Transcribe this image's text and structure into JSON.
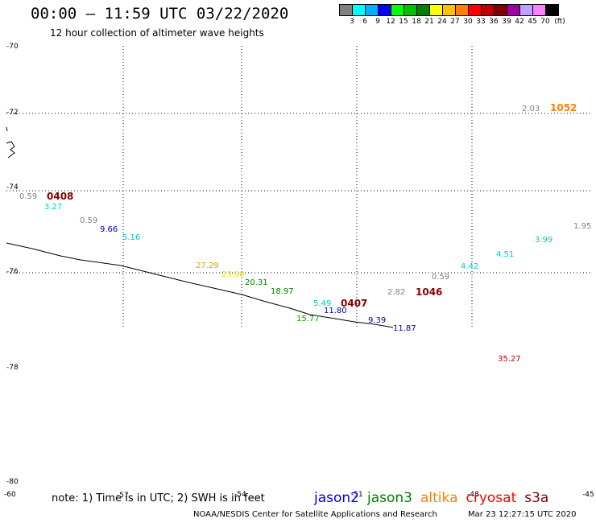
{
  "header": {
    "title": "00:00 – 11:59 UTC 03/22/2020",
    "subtitle": "12 hour collection of altimeter wave heights"
  },
  "colorbar": {
    "colors": [
      "#808080",
      "#00ffff",
      "#00b0ff",
      "#0000ff",
      "#00ff00",
      "#00c000",
      "#008000",
      "#ffff00",
      "#ffc000",
      "#ff8000",
      "#ff0000",
      "#c00000",
      "#800000",
      "#a000a0",
      "#c0a0ff",
      "#ff80ff",
      "#000000"
    ],
    "labels": [
      "3",
      "6",
      "9",
      "12",
      "15",
      "18",
      "21",
      "24",
      "27",
      "30",
      "33",
      "36",
      "39",
      "42",
      "45",
      "70",
      "(ft)"
    ]
  },
  "axes": {
    "lat_labels": [
      "-70",
      "-72",
      "-74",
      "-76",
      "-78",
      "-80"
    ],
    "lon_labels": [
      "-60",
      "-57",
      "-54",
      "-51",
      "-48",
      "-45"
    ]
  },
  "track_labels": [
    {
      "text": "0408",
      "color": "#800000",
      "bold": true
    },
    {
      "text": "0407",
      "color": "#800000",
      "bold": true
    },
    {
      "text": "1046",
      "color": "#800000",
      "bold": true
    },
    {
      "text": "1052",
      "color": "#ff8000",
      "bold": true
    }
  ],
  "wave_heights": [
    {
      "text": "0.59",
      "color": "#808080"
    },
    {
      "text": "3.27",
      "color": "#00c8c8"
    },
    {
      "text": "0.59",
      "color": "#808080"
    },
    {
      "text": "9.66",
      "color": "#0000a0"
    },
    {
      "text": "5.16",
      "color": "#00c8c8"
    },
    {
      "text": "27.29",
      "color": "#e0a000"
    },
    {
      "text": "23.90",
      "color": "#e8e800"
    },
    {
      "text": "20.31",
      "color": "#008000"
    },
    {
      "text": "18.97",
      "color": "#008000"
    },
    {
      "text": "5.49",
      "color": "#00c8c8"
    },
    {
      "text": "11.80",
      "color": "#0000a0"
    },
    {
      "text": "15.77",
      "color": "#00a000"
    },
    {
      "text": "9.39",
      "color": "#0000a0"
    },
    {
      "text": "11.87",
      "color": "#0000a0"
    },
    {
      "text": "2.82",
      "color": "#808080"
    },
    {
      "text": "0.59",
      "color": "#808080"
    },
    {
      "text": "4.42",
      "color": "#00c8c8"
    },
    {
      "text": "4.51",
      "color": "#00c8c8"
    },
    {
      "text": "3.99",
      "color": "#00c8c8"
    },
    {
      "text": "1.95",
      "color": "#808080"
    },
    {
      "text": "2.03",
      "color": "#808080"
    },
    {
      "text": "35.27",
      "color": "#c00000"
    }
  ],
  "footer": {
    "note": "note: 1) Time is in UTC; 2) SWH is in feet",
    "satellites": [
      {
        "name": "jason2",
        "color": "#0000ff"
      },
      {
        "name": "jason3",
        "color": "#008000"
      },
      {
        "name": "altika",
        "color": "#ff8000"
      },
      {
        "name": "cryosat",
        "color": "#ff0000"
      },
      {
        "name": "s3a",
        "color": "#800000"
      }
    ],
    "credit": "NOAA/NESDIS Center for Satellite Applications and Research",
    "timestamp": "Mar 23 12:27:15 UTC 2020"
  }
}
